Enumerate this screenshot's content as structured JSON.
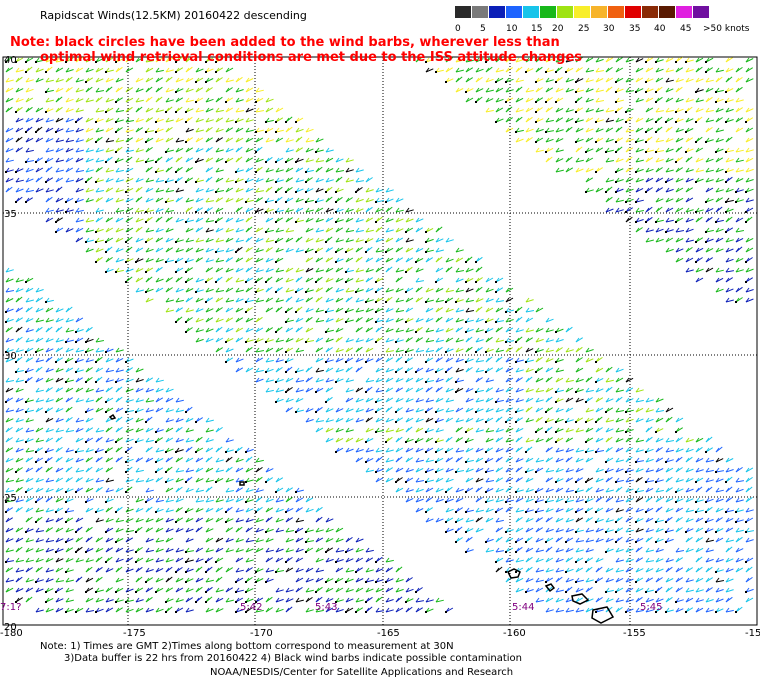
{
  "title": "Rapidscat Winds(12.5KM) 20160422 descending",
  "note_line1": "Note: black circles have been added to the wind barbs, wherever less than",
  "note_line2": "optimal wind retrieval conditions are met due to the ISS attitude changes",
  "legend": {
    "labels": [
      "0",
      "5",
      "10",
      "15",
      "20",
      "25",
      "30",
      "35",
      "40",
      "45",
      ">50 knots"
    ],
    "colors": [
      "#2a2a2a",
      "#7a7a7a",
      "#0b1fb8",
      "#1e64ff",
      "#17c4ea",
      "#18b81a",
      "#9fe312",
      "#f8ee2a",
      "#f7b42a",
      "#f06010",
      "#e00000",
      "#8a2a06",
      "#5a1a02",
      "#e020e0",
      "#7010a0"
    ]
  },
  "map": {
    "lat_labels": [
      "40",
      "35",
      "30",
      "25",
      "20"
    ],
    "lon_labels": [
      "-180",
      "-175",
      "-170",
      "-165",
      "-160",
      "-155",
      "-15"
    ],
    "times": [
      {
        "label": "7:1?",
        "color": "#800080"
      },
      {
        "label": "5:42",
        "color": "#800080"
      },
      {
        "label": "5:43",
        "color": "#800080"
      },
      {
        "label": "5:44",
        "color": "#800080"
      },
      {
        "label": "5:45",
        "color": "#800080"
      }
    ]
  },
  "footer": {
    "line1": "Note: 1) Times are GMT 2)Times along bottom correspond to measurement at 30N",
    "line2": "3)Data buffer is 22 hrs from 20160422 4) Black wind barbs indicate possible contamination",
    "line3": "NOAA/NESDIS/Center for Satellite Applications and Research"
  }
}
